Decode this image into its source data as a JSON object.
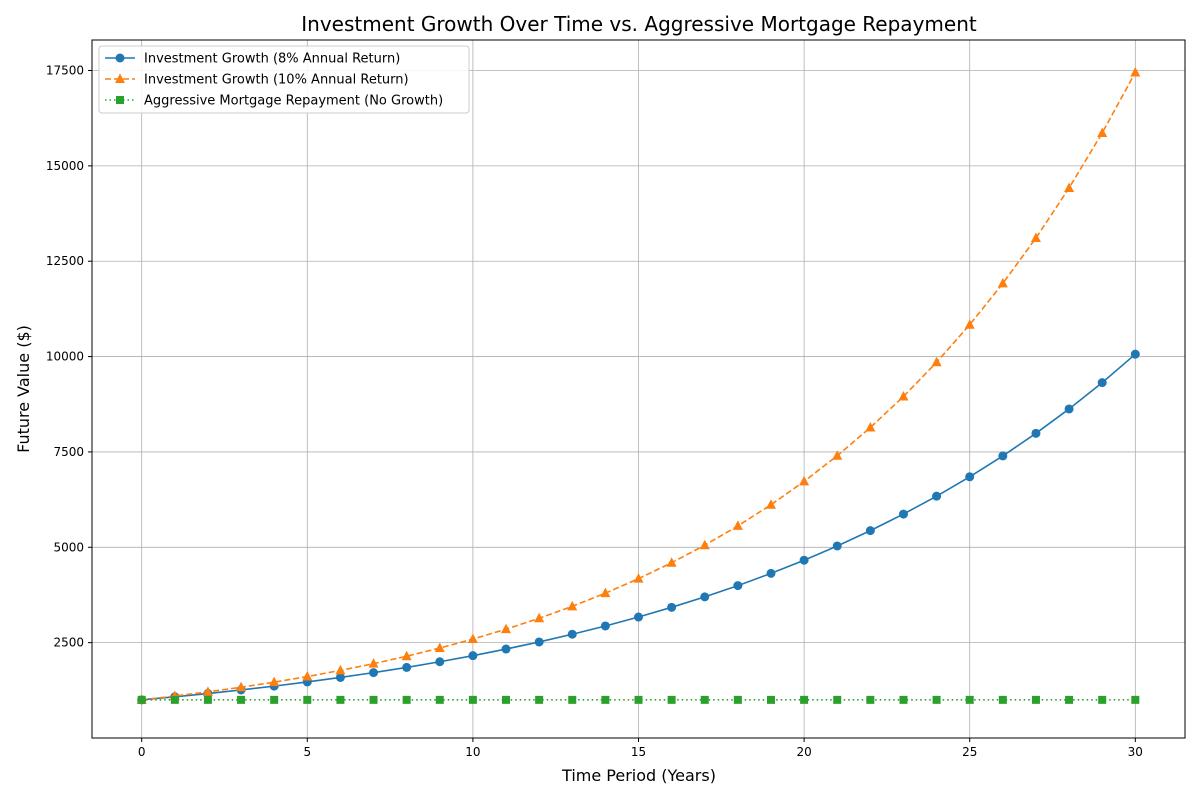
{
  "chart_data": {
    "type": "line",
    "title": "Investment Growth Over Time vs. Aggressive Mortgage Repayment",
    "xlabel": "Time Period (Years)",
    "ylabel": "Future Value ($)",
    "xlim": [
      -1.5,
      31.5
    ],
    "ylim": [
      0,
      18300
    ],
    "xticks": [
      0,
      5,
      10,
      15,
      20,
      25,
      30
    ],
    "yticks": [
      2500,
      5000,
      7500,
      10000,
      12500,
      15000,
      17500
    ],
    "grid": true,
    "legend_position": "top-left",
    "x": [
      0,
      1,
      2,
      3,
      4,
      5,
      6,
      7,
      8,
      9,
      10,
      11,
      12,
      13,
      14,
      15,
      16,
      17,
      18,
      19,
      20,
      21,
      22,
      23,
      24,
      25,
      26,
      27,
      28,
      29,
      30
    ],
    "series": [
      {
        "name": "Investment Growth (8% Annual Return)",
        "color": "#1f77b4",
        "line_style": "solid",
        "marker": "circle",
        "values": [
          1000,
          1080,
          1166,
          1260,
          1360,
          1469,
          1587,
          1714,
          1851,
          1999,
          2159,
          2332,
          2518,
          2720,
          2937,
          3172,
          3426,
          3700,
          3996,
          4316,
          4661,
          5034,
          5437,
          5871,
          6341,
          6848,
          7396,
          7988,
          8627,
          9317,
          10063
        ]
      },
      {
        "name": "Investment Growth (10% Annual Return)",
        "color": "#ff7f0e",
        "line_style": "dashed",
        "marker": "triangle",
        "values": [
          1000,
          1100,
          1210,
          1331,
          1464,
          1611,
          1772,
          1949,
          2144,
          2358,
          2594,
          2853,
          3138,
          3452,
          3797,
          4177,
          4595,
          5054,
          5560,
          6116,
          6727,
          7400,
          8140,
          8954,
          9850,
          10835,
          11918,
          13110,
          14421,
          15863,
          17449
        ]
      },
      {
        "name": "Aggressive Mortgage Repayment (No Growth)",
        "color": "#2ca02c",
        "line_style": "dotted",
        "marker": "square",
        "values": [
          1000,
          1000,
          1000,
          1000,
          1000,
          1000,
          1000,
          1000,
          1000,
          1000,
          1000,
          1000,
          1000,
          1000,
          1000,
          1000,
          1000,
          1000,
          1000,
          1000,
          1000,
          1000,
          1000,
          1000,
          1000,
          1000,
          1000,
          1000,
          1000,
          1000,
          1000
        ]
      }
    ]
  }
}
